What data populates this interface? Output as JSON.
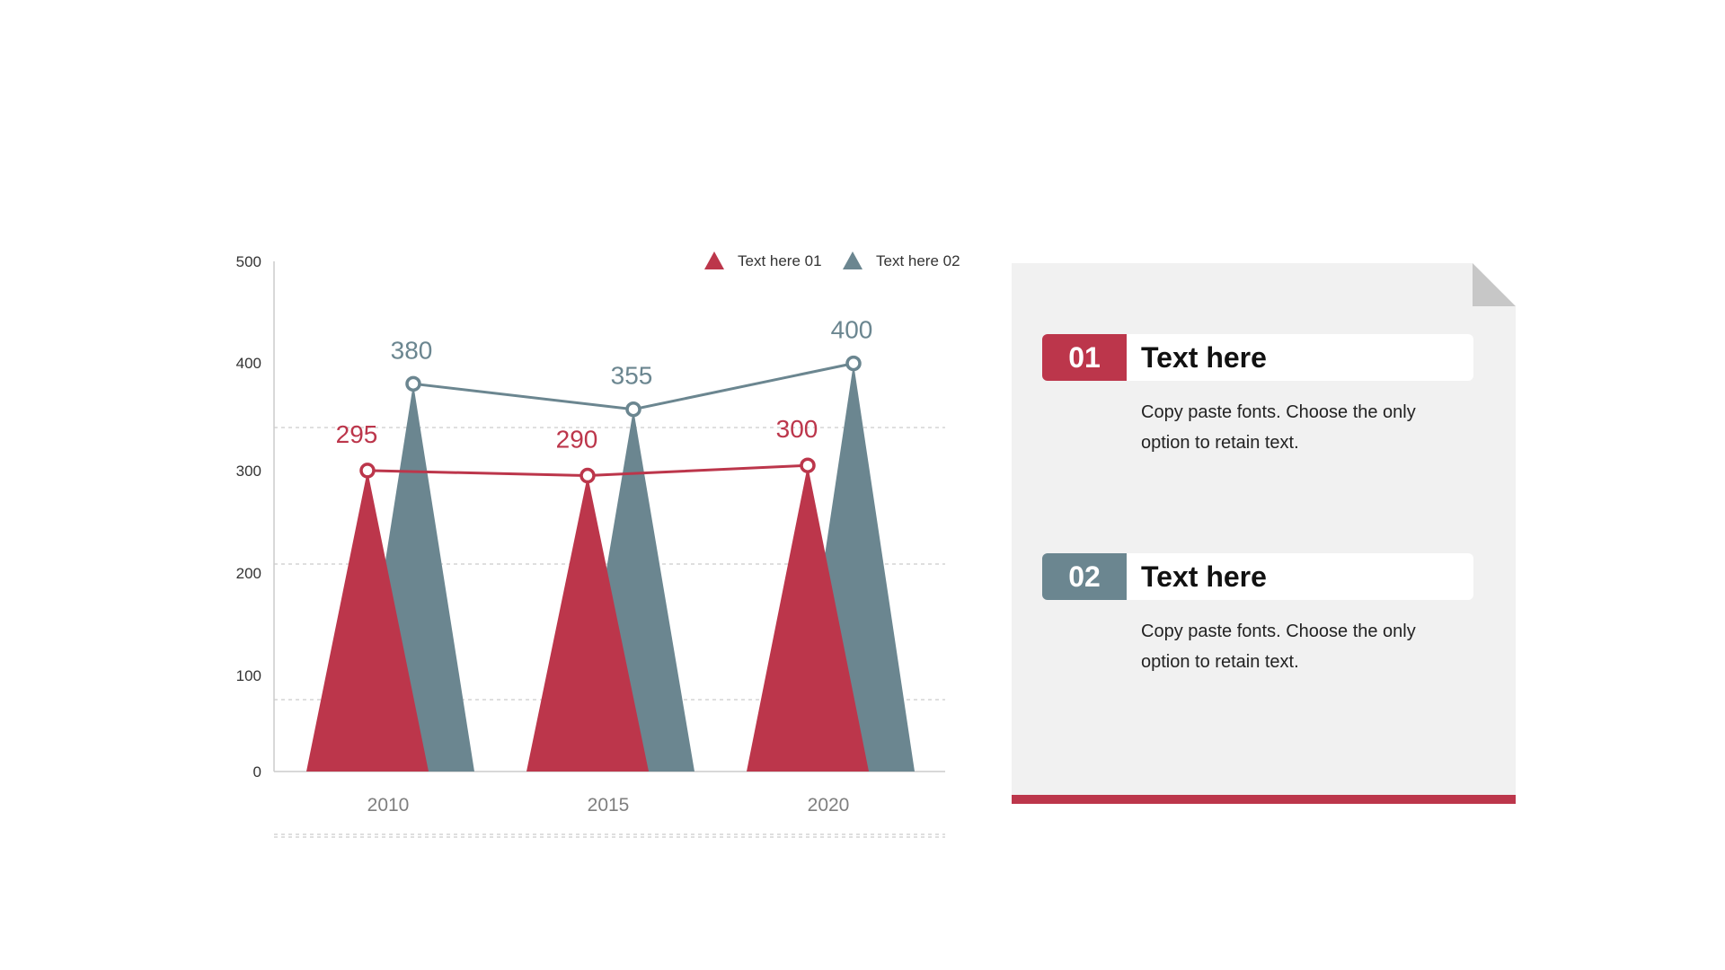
{
  "colors": {
    "series1": "#bc364b",
    "series2": "#6b8690",
    "panel": "#f1f1f1",
    "axis": "#cccccc",
    "tick_text": "#333333",
    "category_text": "#7f7f7f"
  },
  "chart_data": {
    "type": "bar",
    "mark": "triangle-with-line",
    "categories": [
      "2010",
      "2015",
      "2020"
    ],
    "series": [
      {
        "name": "Text here  01",
        "values": [
          295,
          290,
          300
        ]
      },
      {
        "name": "Text here  02",
        "values": [
          380,
          355,
          400
        ]
      }
    ],
    "yticks": [
      "500",
      "400",
      "300",
      "200",
      "100",
      "0"
    ],
    "ylim": [
      0,
      500
    ],
    "legend": "top-right",
    "grid": true
  },
  "panel": {
    "items": [
      {
        "number": "01",
        "title": "Text here",
        "line1": "Copy paste fonts. Choose the only",
        "line2": "option to retain text."
      },
      {
        "number": "02",
        "title": "Text here",
        "line1": "Copy paste fonts. Choose the only",
        "line2": "option to retain text."
      }
    ]
  }
}
